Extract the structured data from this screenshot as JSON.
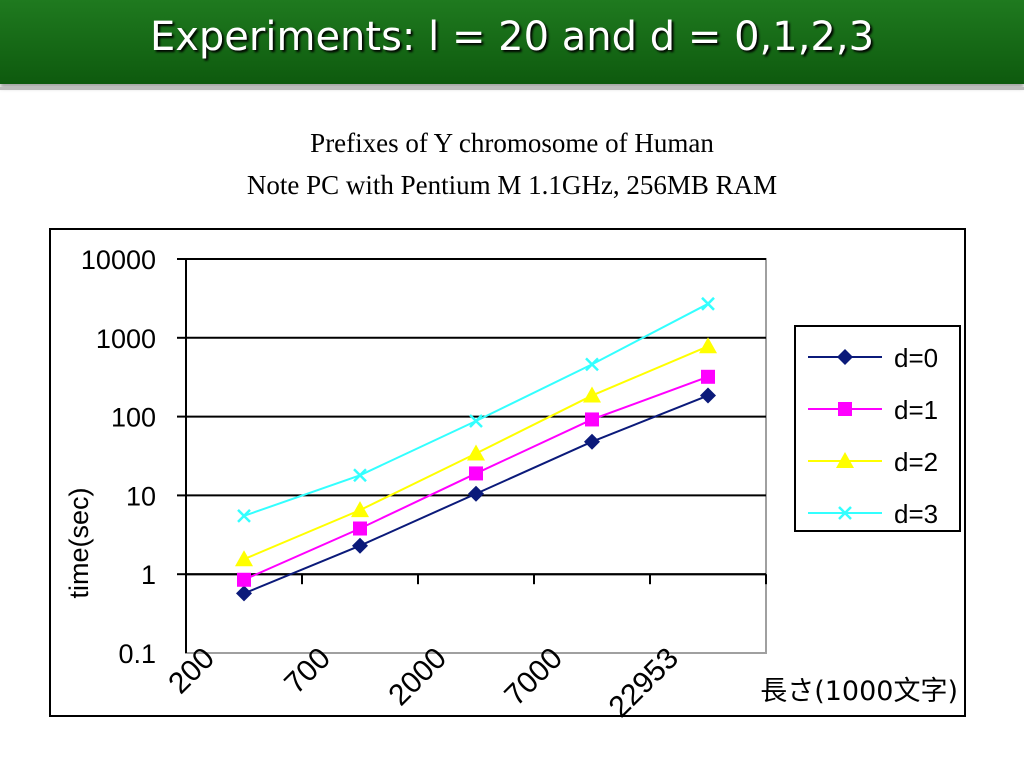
{
  "slide": {
    "title": "Experiments: l = 20 and d = 0,1,2,3",
    "subtitle_line1": "Prefixes of Y chromosome of Human",
    "subtitle_line2": "Note PC with Pentium M 1.1GHz, 256MB RAM"
  },
  "chart_data": {
    "type": "line",
    "yscale": "log",
    "ylim": [
      0.1,
      10000
    ],
    "ylabel": "time(sec)",
    "xlabel": "長さ(1000文字)",
    "yticks": [
      "10000",
      "1000",
      "100",
      "10",
      "1",
      "0.1"
    ],
    "categories": [
      "200",
      "700",
      "2000",
      "7000",
      "22953"
    ],
    "grid": "horizontal",
    "legend_position": "right",
    "series": [
      {
        "name": "d=0",
        "color": "#0b1a7a",
        "marker": "diamond",
        "values": [
          0.57,
          2.3,
          10.5,
          48,
          185
        ]
      },
      {
        "name": "d=1",
        "color": "#ff00ff",
        "marker": "square",
        "values": [
          0.85,
          3.8,
          19,
          92,
          320
        ]
      },
      {
        "name": "d=2",
        "color": "#ffff00",
        "marker": "triangle",
        "values": [
          1.55,
          6.5,
          34,
          185,
          780
        ]
      },
      {
        "name": "d=3",
        "color": "#33ffff",
        "marker": "x",
        "values": [
          5.5,
          18,
          88,
          460,
          2700
        ]
      }
    ]
  }
}
